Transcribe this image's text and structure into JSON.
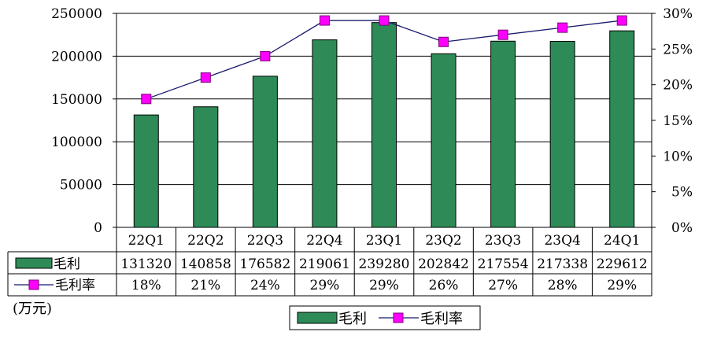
{
  "chart_data": {
    "type": "bar",
    "categories": [
      "22Q1",
      "22Q2",
      "22Q3",
      "22Q4",
      "23Q1",
      "23Q2",
      "23Q3",
      "23Q4",
      "24Q1"
    ],
    "series": [
      {
        "name": "毛利",
        "kind": "bar",
        "axis": "left",
        "values": [
          131320,
          140858,
          176582,
          219061,
          239280,
          202842,
          217554,
          217338,
          229612
        ],
        "labels": [
          "131320",
          "140858",
          "176582",
          "219061",
          "239280",
          "202842",
          "217554",
          "217338",
          "229612"
        ]
      },
      {
        "name": "毛利率",
        "kind": "line",
        "axis": "right",
        "values": [
          18,
          21,
          24,
          29,
          29,
          26,
          27,
          28,
          29
        ],
        "labels": [
          "18%",
          "21%",
          "24%",
          "29%",
          "29%",
          "26%",
          "27%",
          "28%",
          "29%"
        ]
      }
    ],
    "unit_label": "(万元)",
    "left_axis": {
      "ylim": [
        0,
        250000
      ],
      "ticks": [
        "0",
        "50000",
        "100000",
        "150000",
        "200000",
        "250000"
      ]
    },
    "right_axis": {
      "ylim": [
        0,
        30
      ],
      "ticks": [
        "0%",
        "5%",
        "10%",
        "15%",
        "20%",
        "25%",
        "30%"
      ]
    },
    "grid": true,
    "data_table": true,
    "legend_position": "bottom",
    "colors": {
      "bar": "#2e8b57",
      "bar_stroke": "#000000",
      "line": "#1a1a6e",
      "marker": "#ff00ff",
      "grid": "#000000"
    }
  }
}
